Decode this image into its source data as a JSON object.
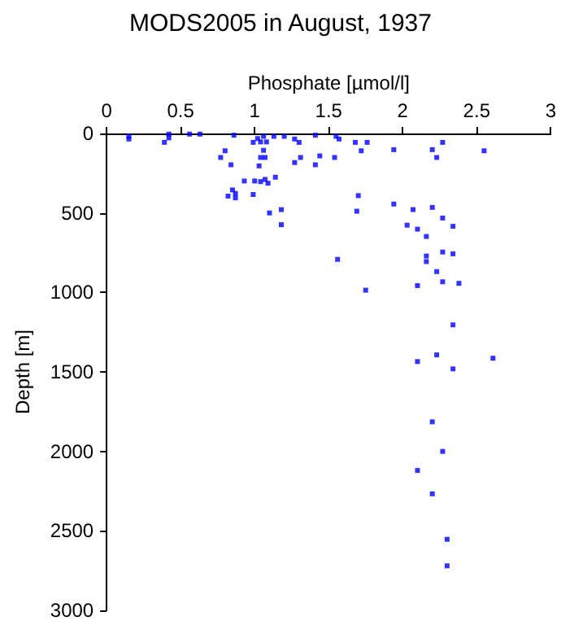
{
  "chart_data": {
    "type": "scatter",
    "title": "MODS2005 in August, 1937",
    "xlabel": "Phosphate [µmol/l]",
    "ylabel": "Depth [m]",
    "xlim": [
      0,
      3
    ],
    "xticks": [
      0,
      0.5,
      1,
      1.5,
      2,
      2.5,
      3
    ],
    "ylim": [
      3000,
      0
    ],
    "yticks": [
      0,
      500,
      1000,
      1500,
      2000,
      2500,
      3000
    ],
    "grid": false,
    "marker": "square",
    "series": [
      {
        "color": "#0000ff",
        "x": [
          0.15,
          0.15,
          0.39,
          0.42,
          0.42,
          0.56,
          0.63,
          0.77,
          0.8,
          0.84,
          0.86,
          0.93,
          0.85,
          0.82,
          0.87,
          0.87,
          0.99,
          0.99,
          1.0,
          1.02,
          1.04,
          1.06,
          1.08,
          1.03,
          1.04,
          1.07,
          1.06,
          1.04,
          1.07,
          1.09,
          1.1,
          1.14,
          1.13,
          1.2,
          1.18,
          1.18,
          1.27,
          1.3,
          1.27,
          1.31,
          1.41,
          1.41,
          1.44,
          1.54,
          1.55,
          1.57,
          1.56,
          1.68,
          1.72,
          1.76,
          1.7,
          1.69,
          1.75,
          1.94,
          1.94,
          2.03,
          2.07,
          2.1,
          2.1,
          2.16,
          2.16,
          2.16,
          2.2,
          2.2,
          2.23,
          2.23,
          2.27,
          2.27,
          2.27,
          2.27,
          2.34,
          2.34,
          2.38,
          2.55,
          2.34,
          2.1,
          2.23,
          2.34,
          2.61,
          2.2,
          2.27,
          2.1,
          2.2,
          2.3,
          2.3
        ],
        "values": [
          18,
          35,
          56,
          28,
          4,
          4,
          4,
          151,
          109,
          197,
          11,
          299,
          355,
          394,
          377,
          405,
          56,
          384,
          299,
          32,
          53,
          18,
          53,
          204,
          151,
          151,
          106,
          303,
          289,
          313,
          500,
          275,
          18,
          18,
          479,
          574,
          35,
          56,
          183,
          151,
          11,
          197,
          141,
          151,
          18,
          35,
          792,
          56,
          109,
          56,
          391,
          489,
          986,
          102,
          444,
          577,
          479,
          602,
          957,
          648,
          771,
          806,
          465,
          102,
          151,
          869,
          56,
          532,
          746,
          933,
          584,
          757,
          943,
          109,
          1204,
          1435,
          1393,
          1481,
          1414,
          1814,
          2000,
          2120,
          2267,
          2553,
          2720
        ]
      }
    ]
  }
}
